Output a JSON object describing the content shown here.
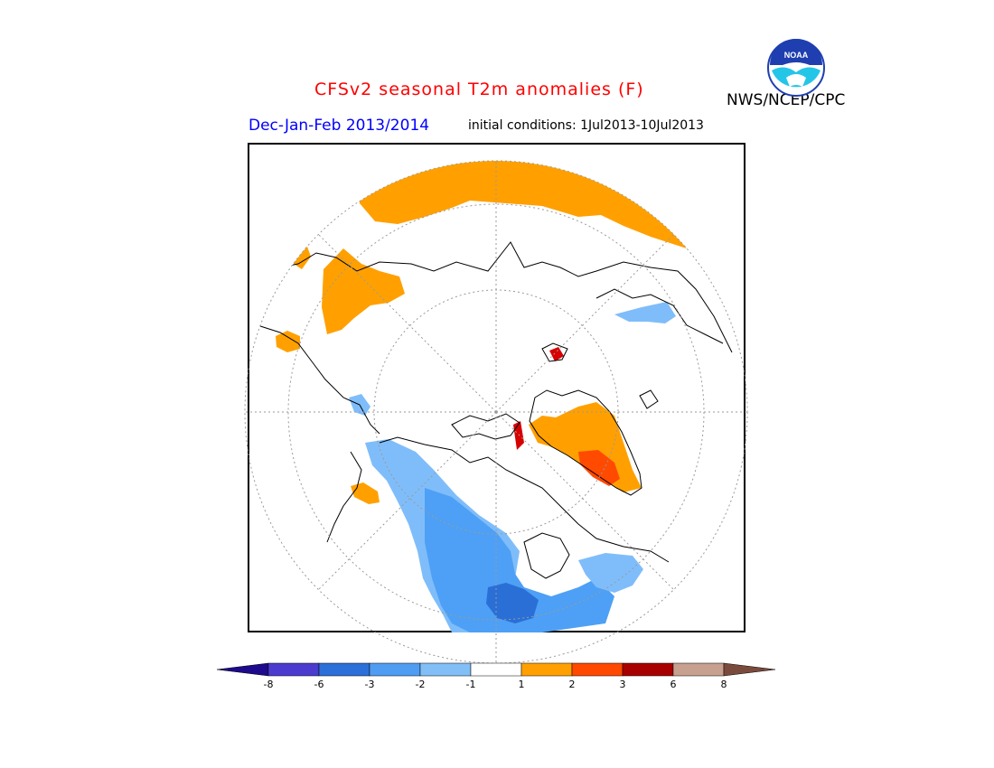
{
  "header": {
    "title": "CFSv2 seasonal T2m anomalies (F)",
    "agency": "NWS/NCEP/CPC",
    "season": "Dec-Jan-Feb 2013/2014",
    "init_conditions": "initial conditions: 1Jul2013-10Jul2013"
  },
  "logo": {
    "icon": "noaa-logo",
    "text": "NOAA"
  },
  "colors": {
    "warm1": "#ffa000",
    "warm2": "#ff4a00",
    "warm3": "#d70000",
    "cool1": "#7fbdfa",
    "cool2": "#4da0f5",
    "cool3": "#2a6fd6",
    "cool4": "#2c3fc8",
    "coast": "#000000",
    "grid": "#9a9a9a"
  },
  "colorbar": {
    "colors": [
      "#1e0a8c",
      "#4b3ccf",
      "#2d6fd9",
      "#4f9df3",
      "#82bff6",
      "#ffffff",
      "#ffa000",
      "#ff4800",
      "#a80000",
      "#c8a090",
      "#7a4b3c"
    ],
    "labels": [
      "-8",
      "-6",
      "-3",
      "-2",
      "-1",
      "1",
      "2",
      "3",
      "6",
      "8"
    ]
  }
}
